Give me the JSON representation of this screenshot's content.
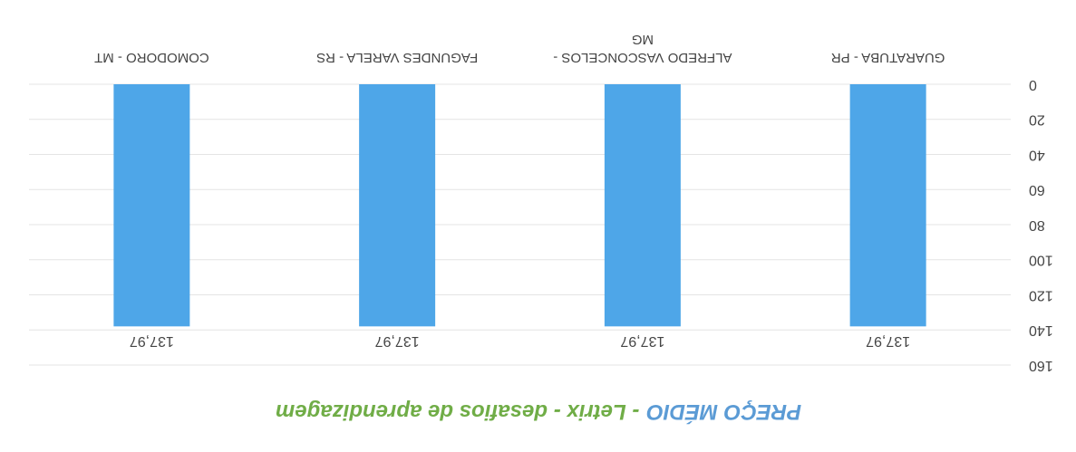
{
  "chart_data": {
    "type": "bar",
    "title": [
      "PREÇO MÉDIO",
      "- Letrix - desafios de aprendizagem"
    ],
    "title_colors": [
      "#5b9bd5",
      "#70ad47"
    ],
    "categories": [
      "GUARATUBA - PR",
      "ALFREDO VASCONCELOS - MG",
      "FAGUNDES VARELA - RS",
      "COMODORO - MT"
    ],
    "values": [
      137.97,
      137.97,
      137.97,
      137.97
    ],
    "value_labels": [
      "137,97",
      "137,97",
      "137,97",
      "137,97"
    ],
    "color": "#4ea6e8",
    "ylim": [
      0,
      160
    ],
    "yticks": [
      0,
      20,
      40,
      60,
      80,
      100,
      120,
      140,
      160
    ],
    "grid": true
  }
}
